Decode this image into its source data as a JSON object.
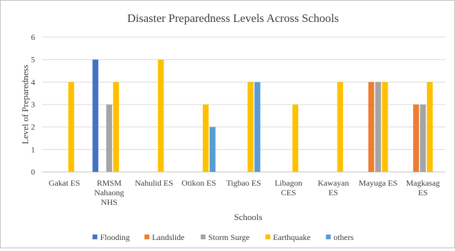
{
  "chart_data": {
    "type": "bar",
    "title": "Disaster Preparedness Levels Across Schools",
    "xlabel": "Schools",
    "ylabel": "Level of Preparedness",
    "ylim": [
      0,
      6
    ],
    "yticks": [
      "0",
      "1",
      "2",
      "3",
      "4",
      "5",
      "6"
    ],
    "grid": true,
    "legend": "bottom",
    "categories": [
      [
        "Gakat ES"
      ],
      [
        "RMSM",
        "Nahaong",
        "NHS"
      ],
      [
        "Nahulid ES"
      ],
      [
        "Otikon ES"
      ],
      [
        "Tigbao ES"
      ],
      [
        "Libagon",
        "CES"
      ],
      [
        "Kawayan",
        "ES"
      ],
      [
        "Mayuga ES"
      ],
      [
        "Magkasag",
        "ES"
      ]
    ],
    "series": [
      {
        "name": "Flooding",
        "color": "#4472c4",
        "values": [
          0,
          5,
          0,
          0,
          0,
          0,
          0,
          0,
          0
        ]
      },
      {
        "name": "Landslide",
        "color": "#ed7d31",
        "values": [
          0,
          0,
          0,
          0,
          0,
          0,
          0,
          4,
          3
        ]
      },
      {
        "name": "Storm Surge",
        "color": "#a5a5a5",
        "values": [
          0,
          3,
          0,
          0,
          0,
          0,
          0,
          4,
          3
        ]
      },
      {
        "name": "Earthquake",
        "color": "#ffc000",
        "values": [
          4,
          4,
          5,
          3,
          4,
          3,
          4,
          4,
          4
        ]
      },
      {
        "name": "others",
        "color": "#5b9bd5",
        "values": [
          0,
          0,
          0,
          2,
          4,
          0,
          0,
          0,
          0
        ]
      }
    ],
    "colors": {
      "grid": "#d9d9d9",
      "text": "#404040",
      "title": "#404040"
    }
  }
}
